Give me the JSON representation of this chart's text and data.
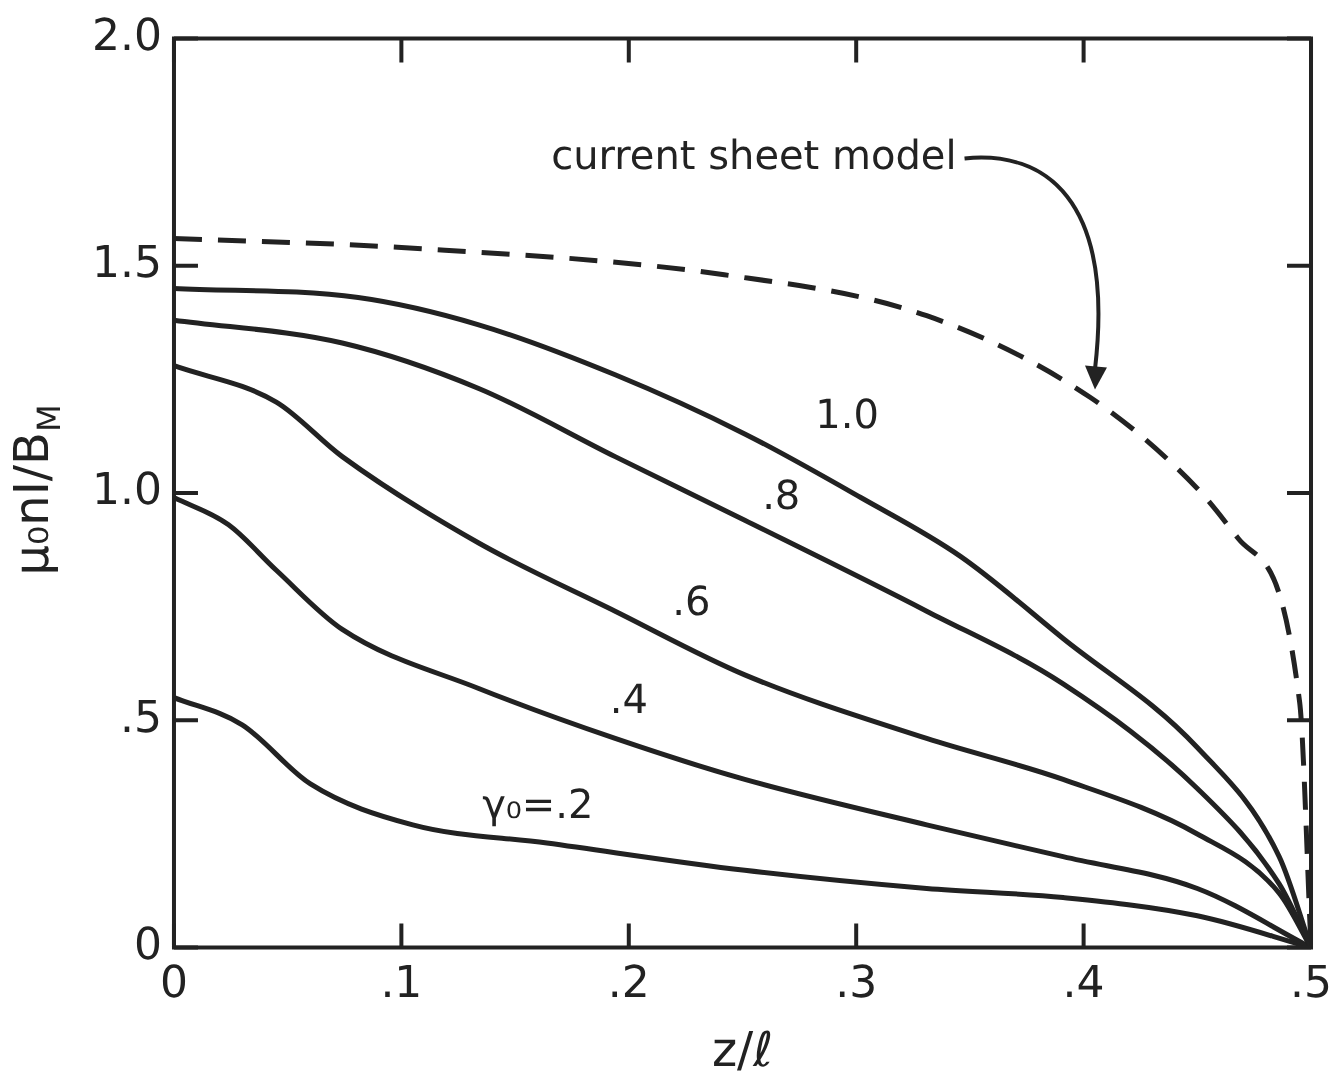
{
  "chart_data": {
    "type": "line",
    "xlabel": "z/ℓ",
    "ylabel": "μ₀nI/B$_{M}$",
    "xlim": [
      0,
      0.5
    ],
    "ylim": [
      0,
      2
    ],
    "xticks": [
      {
        "value": 0,
        "label": "0"
      },
      {
        "value": 0.1,
        "label": ".1"
      },
      {
        "value": 0.2,
        "label": ".2"
      },
      {
        "value": 0.3,
        "label": ".3"
      },
      {
        "value": 0.4,
        "label": ".4"
      },
      {
        "value": 0.5,
        "label": ".5"
      }
    ],
    "yticks": [
      {
        "value": 0,
        "label": "0"
      },
      {
        "value": 0.5,
        "label": ".5"
      },
      {
        "value": 1,
        "label": "1.0"
      },
      {
        "value": 1.5,
        "label": "1.5"
      },
      {
        "value": 2,
        "label": "2.0"
      }
    ],
    "grid": false,
    "legend": false,
    "marker": "none",
    "series": [
      {
        "name": "current sheet model",
        "color": "#222222",
        "line_style": "dashed",
        "x": [
          0,
          0.1,
          0.242,
          0.331,
          0.403,
          0.45,
          0.468,
          0.495,
          0.5
        ],
        "values": [
          1.56,
          1.54,
          1.48,
          1.39,
          1.21,
          1.01,
          0.9,
          0.54,
          0
        ]
      },
      {
        "name": "1.0",
        "color": "#222222",
        "line_style": "solid",
        "x": [
          0,
          0.081,
          0.134,
          0.194,
          0.251,
          0.302,
          0.346,
          0.391,
          0.45,
          0.486,
          0.5
        ],
        "values": [
          1.45,
          1.43,
          1.37,
          1.26,
          1.13,
          0.99,
          0.86,
          0.68,
          0.44,
          0.2,
          0
        ]
      },
      {
        "name": ".8",
        "color": "#222222",
        "line_style": "solid",
        "x": [
          0,
          0.074,
          0.134,
          0.194,
          0.251,
          0.331,
          0.391,
          0.45,
          0.486,
          0.5
        ],
        "values": [
          1.38,
          1.33,
          1.23,
          1.08,
          0.94,
          0.74,
          0.58,
          0.35,
          0.14,
          0
        ]
      },
      {
        "name": ".6",
        "color": "#222222",
        "line_style": "solid",
        "x": [
          0,
          0.045,
          0.074,
          0.134,
          0.194,
          0.251,
          0.331,
          0.391,
          0.45,
          0.486,
          0.5
        ],
        "values": [
          1.28,
          1.2,
          1.08,
          0.89,
          0.74,
          0.6,
          0.46,
          0.37,
          0.25,
          0.12,
          0
        ]
      },
      {
        "name": ".4",
        "color": "#222222",
        "line_style": "solid",
        "x": [
          0,
          0.024,
          0.045,
          0.074,
          0.134,
          0.194,
          0.251,
          0.331,
          0.391,
          0.45,
          0.5
        ],
        "values": [
          0.99,
          0.93,
          0.83,
          0.7,
          0.57,
          0.46,
          0.37,
          0.27,
          0.2,
          0.13,
          0
        ]
      },
      {
        "name": "γ₀=.2",
        "color": "#222222",
        "line_style": "solid",
        "x": [
          0,
          0.03,
          0.06,
          0.105,
          0.164,
          0.251,
          0.331,
          0.391,
          0.45,
          0.5
        ],
        "values": [
          0.55,
          0.49,
          0.36,
          0.27,
          0.23,
          0.17,
          0.13,
          0.11,
          0.07,
          0
        ]
      }
    ]
  }
}
